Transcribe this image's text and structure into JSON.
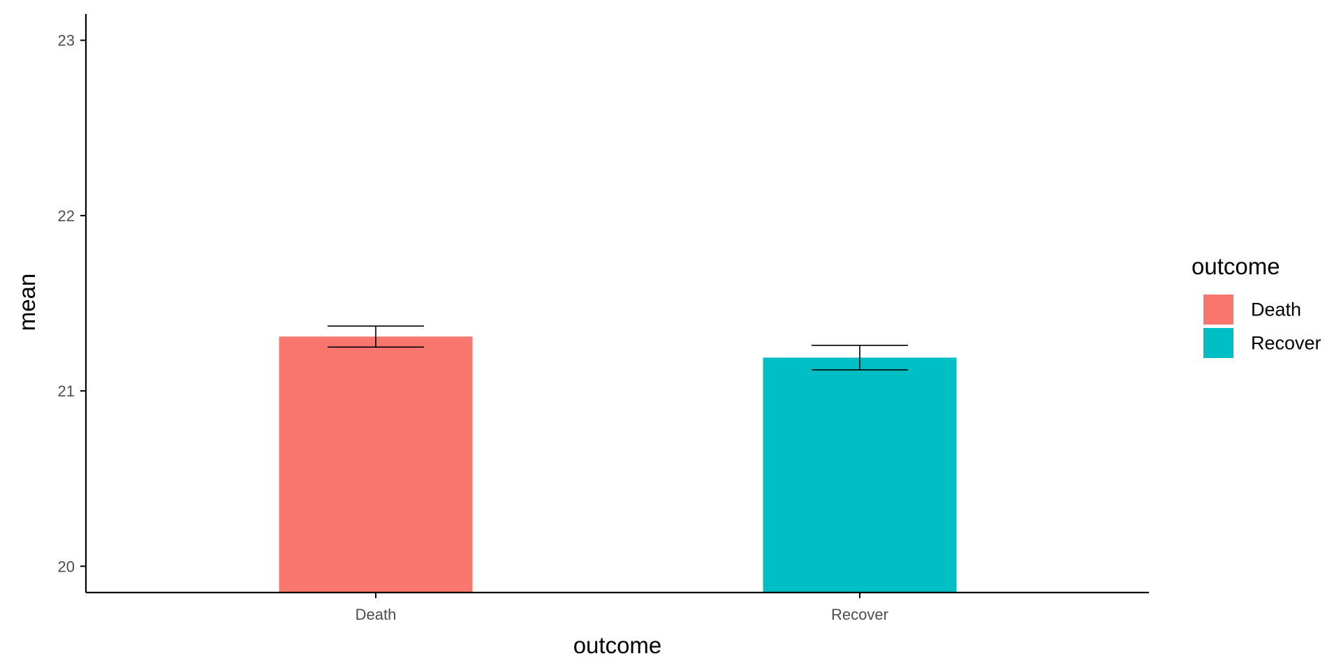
{
  "chart_data": {
    "type": "bar",
    "categories": [
      "Death",
      "Recover"
    ],
    "values": [
      21.31,
      21.19
    ],
    "error_bars": [
      {
        "low": 21.25,
        "high": 21.37
      },
      {
        "low": 21.12,
        "high": 21.26
      }
    ],
    "colors": [
      "#F8766D",
      "#00BFC4"
    ],
    "xlabel": "outcome",
    "ylabel": "mean",
    "ylim": [
      19.85,
      23.15
    ],
    "yticks": [
      20,
      21,
      22,
      23
    ],
    "ytick_labels": [
      "20",
      "21",
      "22",
      "23"
    ],
    "grid": false,
    "legend": {
      "title": "outcome",
      "position": "right",
      "entries": [
        "Death",
        "Recover"
      ]
    }
  }
}
